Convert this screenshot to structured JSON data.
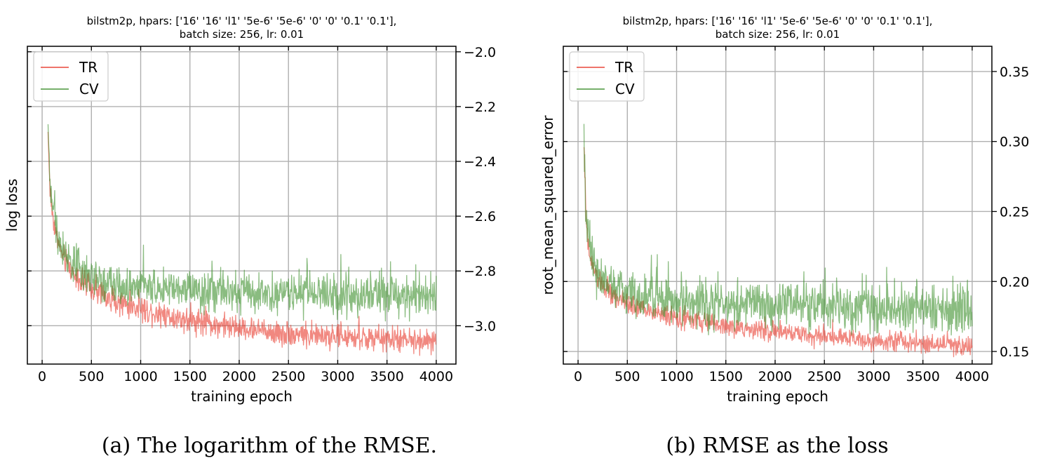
{
  "figure": {
    "captions": [
      "(a) The logarithm of the RMSE.",
      "(b) RMSE as the loss"
    ]
  },
  "chart_data": [
    {
      "type": "line",
      "title": "bilstm2p, hpars: ['16' '16' 'l1' '5e-6' '5e-6' '0' '0' '0.1' '0.1'],",
      "subtitle": "batch size: 256, lr: 0.01",
      "xlabel": "training epoch",
      "ylabel": "log loss",
      "xlim": [
        -150,
        4200
      ],
      "ylim": [
        -3.14,
        -1.98
      ],
      "xticks": [
        0,
        500,
        1000,
        1500,
        2000,
        2500,
        3000,
        3500,
        4000
      ],
      "yticks": [
        -3.0,
        -2.8,
        -2.6,
        -2.4,
        -2.2,
        -2.0
      ],
      "ytick_labels": [
        "−3.0",
        "−2.8",
        "−2.6",
        "−2.4",
        "−2.2",
        "−2.0"
      ],
      "y_axis_side": "right",
      "grid": true,
      "legend": "top-left",
      "series": [
        {
          "name": "TR",
          "color": "#e8392c",
          "x": [
            60,
            80,
            100,
            150,
            200,
            300,
            400,
            500,
            750,
            1000,
            1500,
            2000,
            2500,
            3000,
            3500,
            4000
          ],
          "y": [
            -2.3,
            -2.5,
            -2.58,
            -2.68,
            -2.74,
            -2.8,
            -2.84,
            -2.87,
            -2.91,
            -2.94,
            -2.98,
            -3.01,
            -3.03,
            -3.04,
            -3.05,
            -3.06
          ],
          "noise": 0.022
        },
        {
          "name": "CV",
          "color": "#3c8f2c",
          "x": [
            60,
            80,
            100,
            150,
            200,
            300,
            400,
            500,
            750,
            1000,
            1500,
            2000,
            2500,
            3000,
            3500,
            4000
          ],
          "y": [
            -2.28,
            -2.48,
            -2.56,
            -2.66,
            -2.72,
            -2.77,
            -2.8,
            -2.82,
            -2.85,
            -2.86,
            -2.87,
            -2.88,
            -2.88,
            -2.89,
            -2.89,
            -2.89
          ],
          "noise": 0.035
        }
      ]
    },
    {
      "type": "line",
      "title": "bilstm2p, hpars: ['16' '16' 'l1' '5e-6' '5e-6' '0' '0' '0.1' '0.1'],",
      "subtitle": "batch size: 256, lr: 0.01",
      "xlabel": "training epoch",
      "ylabel": "root_mean_squared_error",
      "xlim": [
        -150,
        4200
      ],
      "ylim": [
        0.141,
        0.368
      ],
      "xticks": [
        0,
        500,
        1000,
        1500,
        2000,
        2500,
        3000,
        3500,
        4000
      ],
      "yticks": [
        0.15,
        0.2,
        0.25,
        0.3,
        0.35
      ],
      "ytick_labels": [
        "0.15",
        "0.20",
        "0.25",
        "0.30",
        "0.35"
      ],
      "y_axis_side": "right",
      "grid": true,
      "legend": "top-left",
      "series": [
        {
          "name": "TR",
          "color": "#e8392c",
          "x": [
            60,
            80,
            100,
            150,
            200,
            300,
            400,
            500,
            750,
            1000,
            1500,
            2000,
            2500,
            3000,
            3500,
            4000
          ],
          "y": [
            0.3,
            0.245,
            0.225,
            0.21,
            0.202,
            0.193,
            0.188,
            0.184,
            0.178,
            0.174,
            0.168,
            0.164,
            0.161,
            0.158,
            0.156,
            0.154
          ],
          "noise": 0.0035
        },
        {
          "name": "CV",
          "color": "#3c8f2c",
          "x": [
            60,
            80,
            100,
            150,
            200,
            300,
            400,
            500,
            750,
            1000,
            1500,
            2000,
            2500,
            3000,
            3500,
            4000
          ],
          "y": [
            0.305,
            0.25,
            0.23,
            0.215,
            0.207,
            0.199,
            0.195,
            0.192,
            0.188,
            0.186,
            0.184,
            0.183,
            0.182,
            0.181,
            0.18,
            0.179
          ],
          "noise": 0.008
        }
      ]
    }
  ]
}
